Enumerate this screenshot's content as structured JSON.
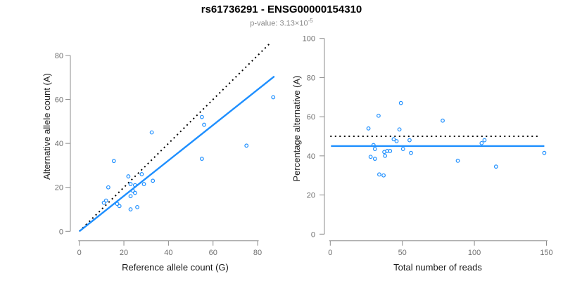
{
  "header": {
    "title": "rs61736291 - ENSG00000154310",
    "p_value_base": "p-value: 3.13×10",
    "p_value_exponent": "-5"
  },
  "colors": {
    "accent_blue": "#1E8FFF",
    "dashed_black": "#000000",
    "axis_line_gray": "#8c8c8c",
    "tick_label_gray": "#6f6f6f",
    "axis_title_black": "#1a1a1a"
  },
  "chart_data": [
    {
      "type": "scatter",
      "title": "",
      "xlabel": "Reference allele count (G)",
      "ylabel": "Alternative allele count (A)",
      "xlim": [
        0,
        88
      ],
      "ylim": [
        0,
        88
      ],
      "xticks": [
        0,
        20,
        40,
        60,
        80
      ],
      "yticks": [
        0,
        20,
        40,
        60,
        80
      ],
      "grid": false,
      "marker": "open-circle",
      "points": [
        [
          11,
          13
        ],
        [
          12,
          14
        ],
        [
          13,
          20
        ],
        [
          15.5,
          32
        ],
        [
          17,
          12.5
        ],
        [
          18,
          11.5
        ],
        [
          22,
          25
        ],
        [
          23,
          10
        ],
        [
          23,
          16
        ],
        [
          23,
          21.5
        ],
        [
          24,
          18.5
        ],
        [
          25,
          17.5
        ],
        [
          25,
          21
        ],
        [
          26,
          11
        ],
        [
          28,
          26
        ],
        [
          29,
          21.5
        ],
        [
          32.5,
          45
        ],
        [
          33,
          23
        ],
        [
          55,
          33
        ],
        [
          55,
          52
        ],
        [
          56,
          48.5
        ],
        [
          75,
          39
        ],
        [
          87,
          61
        ]
      ],
      "lines": [
        {
          "name": "identity-line",
          "style": "dashed",
          "color": "#000000",
          "points": [
            [
              0,
              0
            ],
            [
              85.5,
              85.5
            ]
          ]
        },
        {
          "name": "regression-line",
          "style": "solid",
          "color": "#1E8FFF",
          "points": [
            [
              0,
              0
            ],
            [
              87.5,
              70.5
            ]
          ]
        }
      ]
    },
    {
      "type": "scatter",
      "title": "",
      "xlabel": "Total number of reads",
      "ylabel": "Percentage alternative (A)",
      "xlim": [
        0,
        152
      ],
      "ylim": [
        0,
        100
      ],
      "xticks": [
        0,
        50,
        100,
        150
      ],
      "yticks": [
        0,
        20,
        40,
        60,
        80,
        100
      ],
      "grid": false,
      "marker": "open-circle",
      "points": [
        [
          26.5,
          54
        ],
        [
          28,
          39.5
        ],
        [
          30,
          45.5
        ],
        [
          31,
          43.5
        ],
        [
          31,
          38.5
        ],
        [
          33.5,
          60.5
        ],
        [
          34,
          30.5
        ],
        [
          37,
          30
        ],
        [
          37.5,
          42
        ],
        [
          38,
          40
        ],
        [
          39.5,
          42.5
        ],
        [
          41.5,
          42.5
        ],
        [
          44,
          48.5
        ],
        [
          46,
          47.5
        ],
        [
          48,
          53.5
        ],
        [
          49,
          67
        ],
        [
          50.5,
          43.5
        ],
        [
          55,
          48
        ],
        [
          56,
          41.5
        ],
        [
          78,
          58
        ],
        [
          88.5,
          37.5
        ],
        [
          105,
          46.5
        ],
        [
          107,
          48
        ],
        [
          115,
          34.5
        ],
        [
          148.5,
          41.5
        ]
      ],
      "lines": [
        {
          "name": "fifty-percent-line",
          "style": "dashed",
          "color": "#000000",
          "points": [
            [
              0,
              50
            ],
            [
              145,
              50
            ]
          ]
        },
        {
          "name": "mean-percentage-line",
          "style": "solid",
          "color": "#1E8FFF",
          "points": [
            [
              0.5,
              45
            ],
            [
              148.5,
              45
            ]
          ]
        }
      ]
    }
  ]
}
